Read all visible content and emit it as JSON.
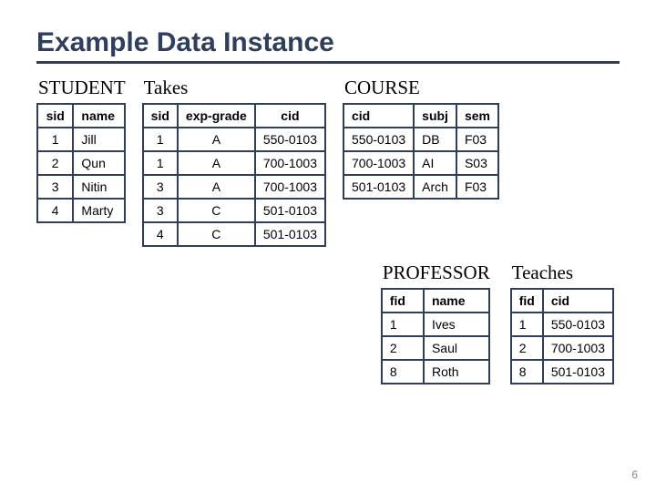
{
  "title": "Example Data Instance",
  "page_number": "6",
  "colors": {
    "border": "#2e3e5c",
    "title": "#2e3e5c",
    "bg": "#ffffff"
  },
  "fonts": {
    "title": "Gill Sans",
    "label": "Georgia",
    "table": "Gill Sans"
  },
  "tables": {
    "student": {
      "label": "STUDENT",
      "columns": [
        "sid",
        "name"
      ],
      "rows": [
        [
          "1",
          "Jill"
        ],
        [
          "2",
          "Qun"
        ],
        [
          "3",
          "Nitin"
        ],
        [
          "4",
          "Marty"
        ]
      ],
      "col_align": [
        "center",
        "left"
      ]
    },
    "takes": {
      "label": "Takes",
      "columns": [
        "sid",
        "exp-grade",
        "cid"
      ],
      "rows": [
        [
          "1",
          "A",
          "550-0103"
        ],
        [
          "1",
          "A",
          "700-1003"
        ],
        [
          "3",
          "A",
          "700-1003"
        ],
        [
          "3",
          "C",
          "501-0103"
        ],
        [
          "4",
          "C",
          "501-0103"
        ]
      ],
      "col_align": [
        "center",
        "center",
        "center"
      ]
    },
    "course": {
      "label": "COURSE",
      "columns": [
        "cid",
        "subj",
        "sem"
      ],
      "rows": [
        [
          "550-0103",
          "DB",
          "F03"
        ],
        [
          "700-1003",
          "AI",
          "S03"
        ],
        [
          "501-0103",
          "Arch",
          "F03"
        ]
      ],
      "col_align": [
        "left",
        "left",
        "left"
      ]
    },
    "professor": {
      "label": "PROFESSOR",
      "columns": [
        "fid",
        "name"
      ],
      "rows": [
        [
          "1",
          "Ives"
        ],
        [
          "2",
          "Saul"
        ],
        [
          "8",
          "Roth"
        ]
      ],
      "col_align": [
        "left",
        "left"
      ]
    },
    "teaches": {
      "label": "Teaches",
      "columns": [
        "fid",
        "cid"
      ],
      "rows": [
        [
          "1",
          "550-0103"
        ],
        [
          "2",
          "700-1003"
        ],
        [
          "8",
          "501-0103"
        ]
      ],
      "col_align": [
        "left",
        "left"
      ]
    }
  }
}
